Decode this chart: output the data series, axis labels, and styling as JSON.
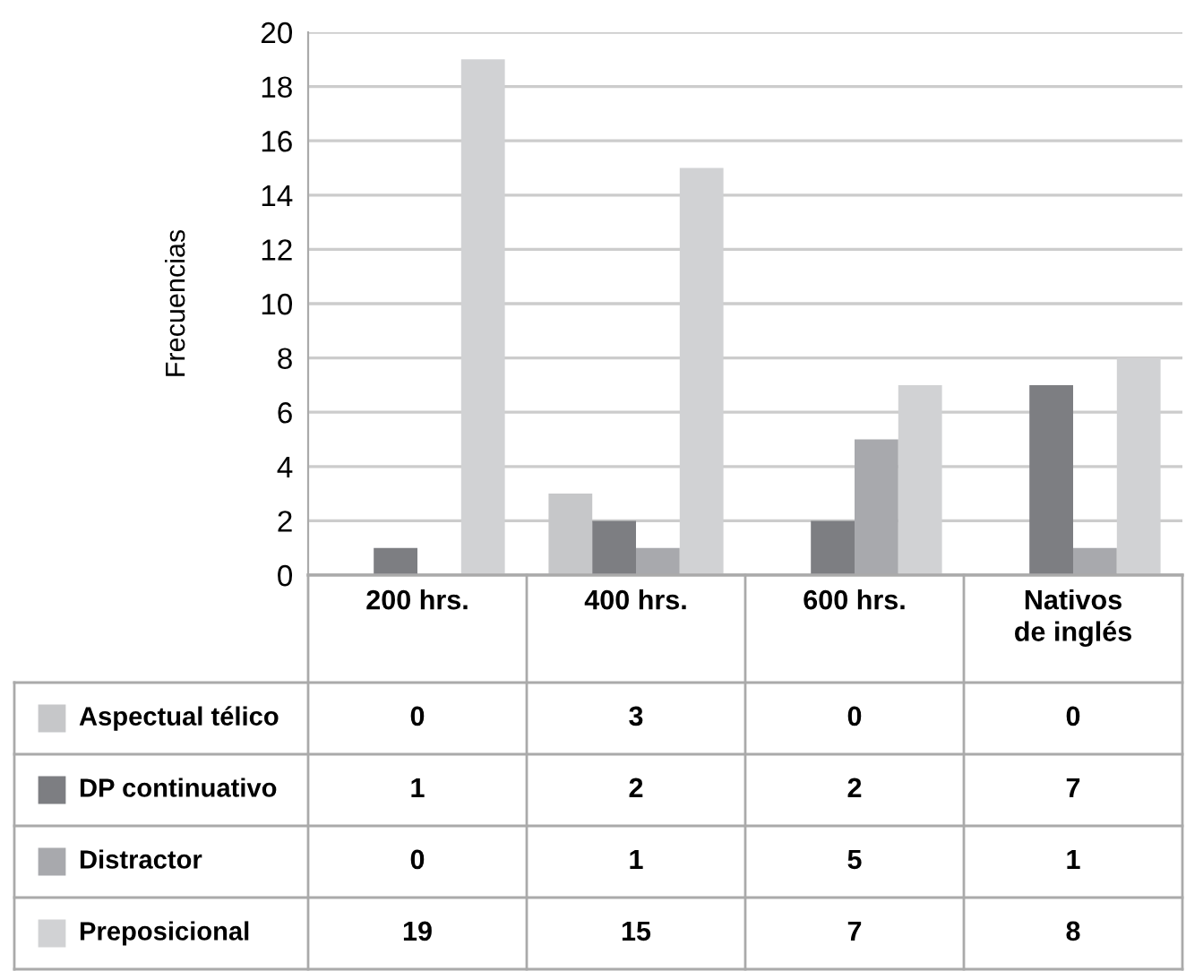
{
  "chart_data": {
    "type": "bar",
    "ylabel": "Frecuencias",
    "categories": [
      "200 hrs.",
      "400 hrs.",
      "600 hrs.",
      "Nativos\nde inglés"
    ],
    "series": [
      {
        "name": "Aspectual télico",
        "color": "#c6c7c9",
        "values": [
          0,
          3,
          0,
          0
        ]
      },
      {
        "name": "DP continuativo",
        "color": "#7d7e82",
        "values": [
          1,
          2,
          2,
          7
        ]
      },
      {
        "name": "Distractor",
        "color": "#a8a9ad",
        "values": [
          0,
          1,
          5,
          1
        ]
      },
      {
        "name": "Preposicional",
        "color": "#d1d2d4",
        "values": [
          19,
          15,
          7,
          8
        ]
      }
    ],
    "ylim": [
      0,
      20
    ],
    "yticks": [
      0,
      2,
      4,
      6,
      8,
      10,
      12,
      14,
      16,
      18,
      20
    ],
    "grid": "y",
    "data_labels": true,
    "legend": "bottom"
  }
}
